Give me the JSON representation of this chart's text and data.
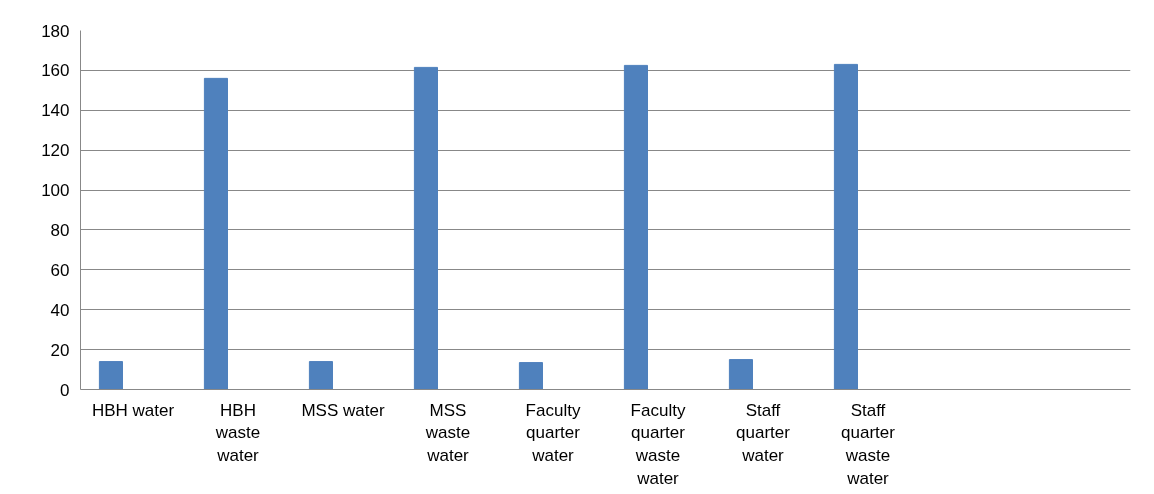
{
  "chart_data": {
    "type": "bar",
    "categories": [
      "HBH water",
      "HBH waste water",
      "MSS water",
      "MSS waste water",
      "Faculty quarter water",
      "Faculty quarter waste water",
      "Staff quarter water",
      "Staff quarter waste water",
      null,
      null
    ],
    "values": [
      14,
      156,
      14,
      161.5,
      13.5,
      162.5,
      15,
      163,
      null,
      null
    ],
    "color": "#4f81bd",
    "ylim": [
      0,
      180
    ],
    "yticks": [
      0,
      20,
      40,
      60,
      80,
      100,
      120,
      140,
      160,
      180
    ],
    "grid": "y"
  }
}
